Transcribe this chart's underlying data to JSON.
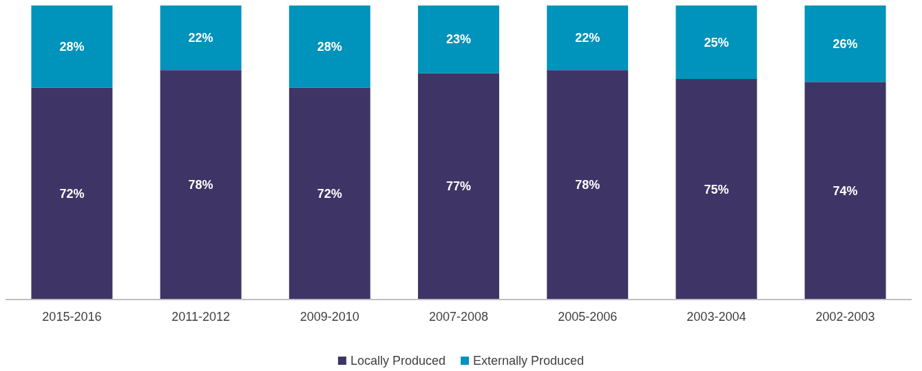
{
  "chart_data": {
    "type": "bar",
    "stacked": true,
    "categories": [
      "2015-2016",
      "2011-2012",
      "2009-2010",
      "2007-2008",
      "2005-2006",
      "2003-2004",
      "2002-2003"
    ],
    "series": [
      {
        "name": "Locally Produced",
        "color": "#3e3566",
        "values": [
          72,
          78,
          72,
          77,
          78,
          75,
          74
        ],
        "value_labels": [
          "72%",
          "78%",
          "72%",
          "77%",
          "78%",
          "75%",
          "74%"
        ]
      },
      {
        "name": "Externally Produced",
        "color": "#0093bb",
        "values": [
          28,
          22,
          28,
          23,
          22,
          25,
          26
        ],
        "value_labels": [
          "28%",
          "22%",
          "28%",
          "23%",
          "22%",
          "25%",
          "26%"
        ]
      }
    ],
    "tick_labels": "x",
    "legend": "bottom"
  }
}
